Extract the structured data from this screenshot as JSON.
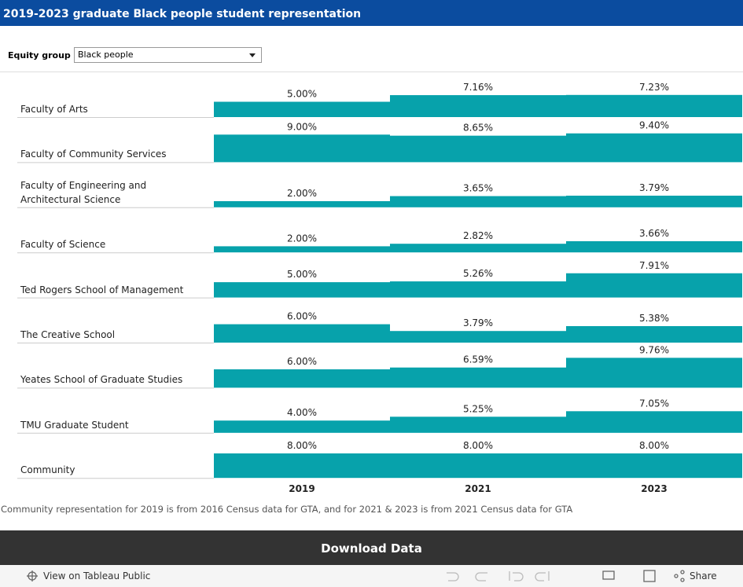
{
  "header": {
    "title": "2019-2023 graduate Black people student representation",
    "filter_label": "Equity group",
    "filter_value": "Black people"
  },
  "chart_data": {
    "type": "bar",
    "categories": [
      "Faculty of Arts",
      "Faculty of Community Services",
      "Faculty of Engineering and Architectural Science",
      "Faculty of Science",
      "Ted Rogers School of Management",
      "The Creative School",
      "Yeates School of Graduate Studies",
      "TMU Graduate Student",
      "Community"
    ],
    "series": [
      {
        "name": "2019",
        "color": "#07a2ab",
        "values": [
          5.0,
          9.0,
          2.0,
          2.0,
          5.0,
          6.0,
          6.0,
          4.0,
          8.0
        ],
        "value_labels": [
          "5.00%",
          "9.00%",
          "2.00%",
          "2.00%",
          "5.00%",
          "6.00%",
          "6.00%",
          "4.00%",
          "8.00%"
        ]
      },
      {
        "name": "2021",
        "color": "#07a2ab",
        "values": [
          7.16,
          8.65,
          3.65,
          2.82,
          5.26,
          3.79,
          6.59,
          5.25,
          8.0
        ],
        "value_labels": [
          "7.16%",
          "8.65%",
          "3.65%",
          "2.82%",
          "5.26%",
          "3.79%",
          "6.59%",
          "5.25%",
          "8.00%"
        ]
      },
      {
        "name": "2023",
        "color": "#07a2ab",
        "values": [
          7.23,
          9.4,
          3.79,
          3.66,
          7.91,
          5.38,
          9.76,
          7.05,
          8.0
        ],
        "value_labels": [
          "7.23%",
          "9.40%",
          "3.79%",
          "3.66%",
          "7.91%",
          "5.38%",
          "9.76%",
          "7.05%",
          "8.00%"
        ]
      }
    ],
    "note": "Community representation for 2019 is from 2016 Census data for GTA, and for 2021 & 2023 is from 2021 Census data for GTA"
  },
  "footer": {
    "button": "Download Data",
    "view_link": "View on Tableau Public",
    "share": "Share"
  }
}
